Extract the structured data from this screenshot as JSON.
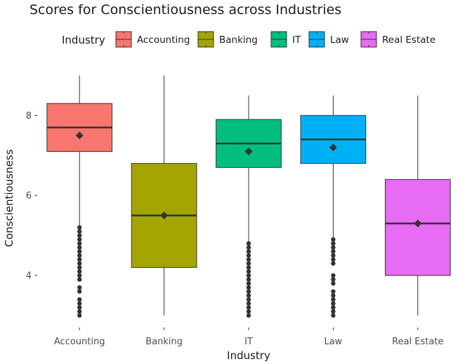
{
  "chart_data": {
    "type": "boxplot",
    "title": "Scores for Conscientiousness across Industries",
    "xlabel": "Industry",
    "ylabel": "Conscientiousness",
    "ylim": [
      2.7,
      9.2
    ],
    "yticks": [
      4,
      6,
      8
    ],
    "grid": false,
    "legend": {
      "title": "Industry",
      "placement": "top",
      "entries": [
        "Accounting",
        "Banking",
        "IT",
        "Law",
        "Real Estate"
      ]
    },
    "categories": [
      "Accounting",
      "Banking",
      "IT",
      "Law",
      "Real Estate"
    ],
    "series": [
      {
        "name": "Accounting",
        "color": "#F8766D",
        "whisker_low": 5.2,
        "q1": 7.1,
        "median": 7.7,
        "q3": 8.3,
        "whisker_high": 9.0,
        "mean": 7.5,
        "outliers": [
          5.2,
          5.1,
          5.0,
          4.9,
          4.8,
          4.7,
          4.6,
          4.5,
          4.4,
          4.3,
          4.2,
          4.1,
          4.0,
          3.9,
          3.7,
          3.6,
          3.4,
          3.3,
          3.2,
          3.1,
          3.0
        ]
      },
      {
        "name": "Banking",
        "color": "#A3A500",
        "whisker_low": 3.0,
        "q1": 4.2,
        "median": 5.5,
        "q3": 6.8,
        "whisker_high": 9.0,
        "mean": 5.5,
        "outliers": []
      },
      {
        "name": "IT",
        "color": "#00BF7D",
        "whisker_low": 4.8,
        "q1": 6.7,
        "median": 7.3,
        "q3": 7.9,
        "whisker_high": 8.5,
        "mean": 7.1,
        "outliers": [
          4.8,
          4.7,
          4.6,
          4.5,
          4.4,
          4.3,
          4.2,
          4.1,
          4.0,
          3.9,
          3.8,
          3.7,
          3.6,
          3.5,
          3.4,
          3.3,
          3.2,
          3.1,
          3.0
        ]
      },
      {
        "name": "Law",
        "color": "#00B0F6",
        "whisker_low": 4.9,
        "q1": 6.8,
        "median": 7.4,
        "q3": 8.0,
        "whisker_high": 8.5,
        "mean": 7.2,
        "outliers": [
          4.9,
          4.8,
          4.7,
          4.6,
          4.5,
          4.4,
          4.3,
          4.0,
          3.9,
          3.8,
          3.6,
          3.5,
          3.4,
          3.3,
          3.2,
          3.1,
          3.0
        ]
      },
      {
        "name": "Real Estate",
        "color": "#E76BF3",
        "whisker_low": 3.0,
        "q1": 4.0,
        "median": 5.3,
        "q3": 6.4,
        "whisker_high": 8.5,
        "mean": 5.3,
        "outliers": []
      }
    ]
  }
}
